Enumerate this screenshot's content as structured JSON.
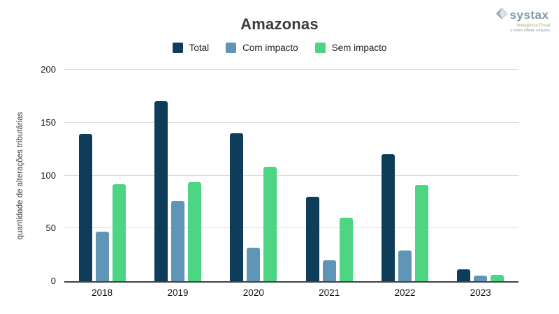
{
  "header": {
    "title": "Amazonas"
  },
  "logo": {
    "brand": "systax",
    "tagline": "Inteligência Fiscal",
    "subtext": "a Vertex affiliate company"
  },
  "chart_data": {
    "type": "bar",
    "title": "Amazonas",
    "categories": [
      "2018",
      "2019",
      "2020",
      "2021",
      "2022",
      "2023"
    ],
    "series": [
      {
        "name": "Total",
        "color": "#0e3d59",
        "values": [
          139,
          170,
          140,
          80,
          120,
          11
        ]
      },
      {
        "name": "Com impacto",
        "color": "#6095b8",
        "values": [
          47,
          76,
          32,
          20,
          29,
          5
        ]
      },
      {
        "name": "Sem impacto",
        "color": "#4ed583",
        "values": [
          92,
          94,
          108,
          60,
          91,
          6
        ]
      }
    ],
    "xlabel": "",
    "ylabel": "quantidade de alterações tributárias",
    "ylim": [
      0,
      200
    ],
    "y_ticks": [
      0,
      50,
      100,
      150,
      200
    ],
    "grid": true,
    "legend_position": "top",
    "axis_color": "#424242",
    "gridline_color": "#dcdcdc"
  }
}
